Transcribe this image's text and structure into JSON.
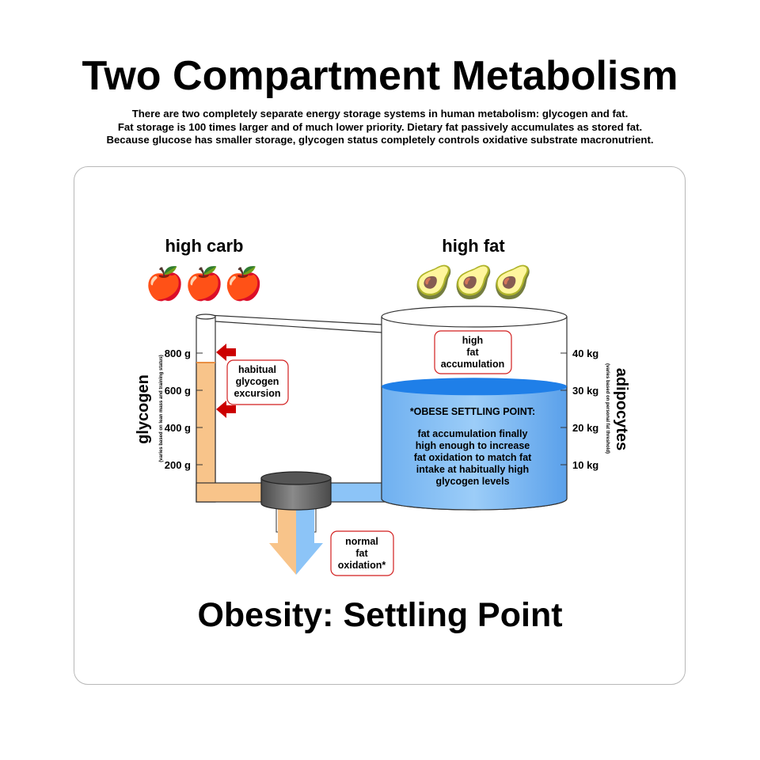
{
  "title": "Two Compartment Metabolism",
  "intro": [
    "There are two completely separate energy storage systems in human metabolism:  glycogen and fat.",
    "Fat storage is 100 times larger and of much lower priority.  Dietary fat passively accumulates as stored fat.",
    "Because glucose has smaller storage, glycogen status completely controls oxidative substrate macronutrient."
  ],
  "left_food": {
    "label": "high carb",
    "emoji": "🍎🍎🍎",
    "icon": "apple-icon"
  },
  "right_food": {
    "label": "high fat",
    "emoji": "🥑🥑🥑",
    "icon": "avocado-icon"
  },
  "glycogen_axis": {
    "label": "glycogen",
    "note": "(varies based on lean mass and training status)",
    "ticks": [
      "800 g",
      "600 g",
      "400 g",
      "200 g"
    ],
    "fill_level_g": 750,
    "max_g": 1000
  },
  "adipocyte_axis": {
    "label": "adipocytes",
    "note": "(varies based on personal fat threshold)",
    "ticks": [
      "40 kg",
      "30 kg",
      "20 kg",
      "10 kg"
    ],
    "fill_level_kg": 31,
    "max_kg": 50
  },
  "callouts": {
    "glycogen_excursion": [
      "habitual",
      "glycogen",
      "excursion"
    ],
    "fat_accumulation": [
      "high",
      "fat",
      "accumulation"
    ],
    "fat_oxidation": [
      "normal",
      "fat",
      "oxidation*"
    ]
  },
  "settling_note": {
    "heading": "*OBESE SETTLING POINT:",
    "lines": [
      "fat accumulation finally",
      "high enough to increase",
      "fat oxidation to match fat",
      "intake at habitually high",
      "glycogen levels"
    ]
  },
  "footer": "Obesity:  Settling Point",
  "colors": {
    "glycogen": "#f8c48a",
    "glycogen_dark": "#e98f43",
    "fat": "#8cc4f7",
    "fat_dark": "#1f7fe8",
    "arrow": "#cc0000",
    "callout_border": "#d21f1f",
    "valve": "#666666"
  }
}
